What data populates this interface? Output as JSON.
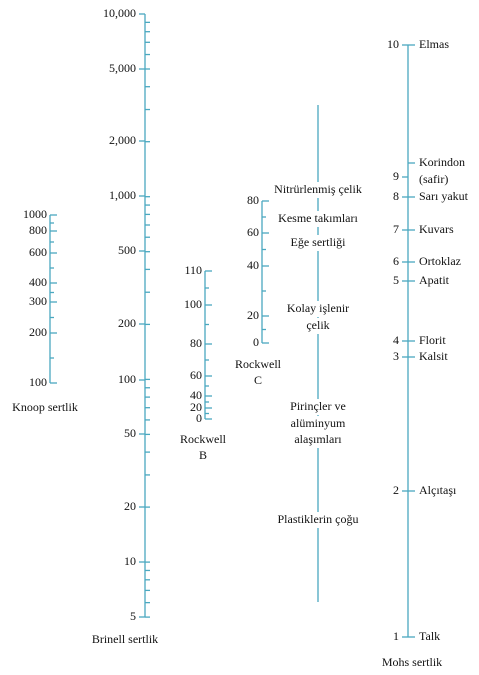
{
  "scales": [
    {
      "name": [
        "Knoop sertlik"
      ],
      "ticks": [
        1000,
        800,
        600,
        400,
        300,
        200,
        100
      ]
    },
    {
      "name": [
        "Brinell sertlik"
      ],
      "ticks": [
        "10,000",
        "5,000",
        "2,000",
        "1,000",
        500,
        200,
        100,
        50,
        20,
        10,
        5
      ]
    },
    {
      "name": [
        "Rockwell",
        "B"
      ],
      "ticks": [
        110,
        100,
        80,
        60,
        40,
        20,
        0
      ]
    },
    {
      "name": [
        "Rockwell",
        "C"
      ],
      "ticks": [
        80,
        60,
        40,
        20,
        0
      ]
    },
    {
      "name": [
        "Mohs sertlik"
      ],
      "ticks": [
        10,
        9,
        8,
        7,
        6,
        5,
        4,
        3,
        2,
        1
      ]
    }
  ],
  "minerals": [
    "Elmas",
    "Korindon",
    "(safir)",
    "Sarı yakut",
    "Kuvars",
    "Ortoklaz",
    "Apatit",
    "Florit",
    "Kalsit",
    "Alçıtaşı",
    "Talk"
  ],
  "materials": [
    "Nitrürlenmiş çelik",
    "Kesme takımları",
    "Eğe sertliği",
    "Kolay işlenir",
    "çelik",
    "Pirinçler ve",
    "alüminyum",
    "alaşımları",
    "Plastiklerin çoğu"
  ]
}
